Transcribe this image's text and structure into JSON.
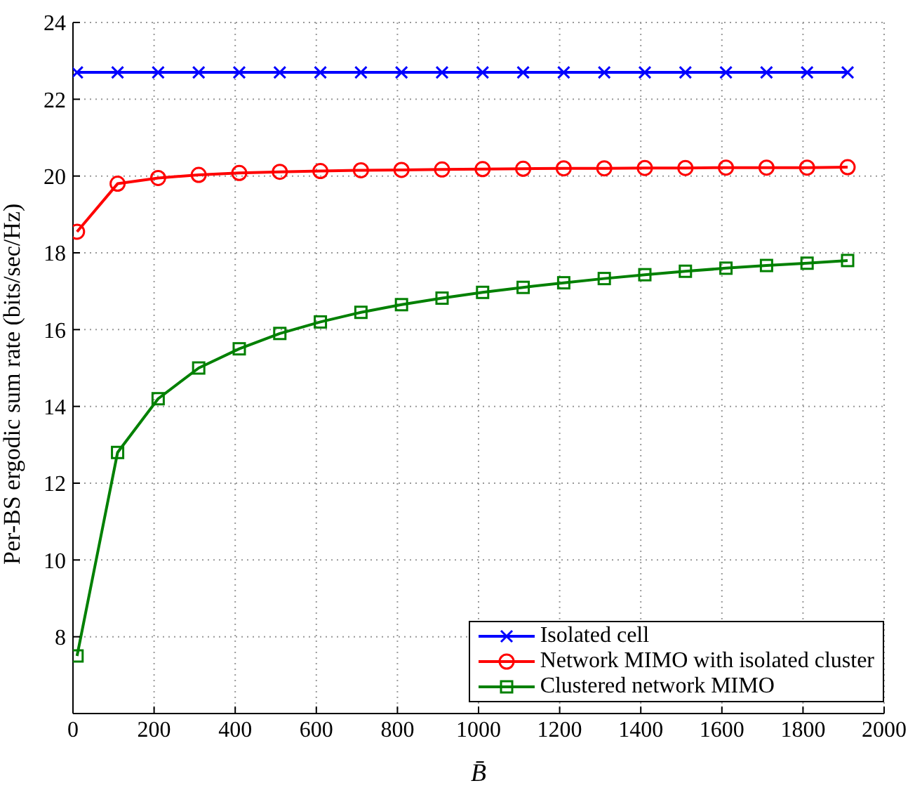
{
  "chart_data": {
    "type": "line",
    "xlabel": "B̄",
    "ylabel": "Per-BS ergodic sum rate (bits/sec/Hz)",
    "x": [
      10,
      110,
      210,
      310,
      410,
      510,
      610,
      710,
      810,
      910,
      1010,
      1110,
      1210,
      1310,
      1410,
      1510,
      1610,
      1710,
      1810,
      1910
    ],
    "series": [
      {
        "name": "Isolated cell",
        "color": "#0000ff",
        "marker": "cross",
        "values": [
          22.7,
          22.7,
          22.7,
          22.7,
          22.7,
          22.7,
          22.7,
          22.7,
          22.7,
          22.7,
          22.7,
          22.7,
          22.7,
          22.7,
          22.7,
          22.7,
          22.7,
          22.7,
          22.7,
          22.7
        ]
      },
      {
        "name": "Network MIMO with isolated cluster",
        "color": "#ff0000",
        "marker": "circle",
        "values": [
          18.55,
          19.8,
          19.95,
          20.03,
          20.08,
          20.11,
          20.13,
          20.15,
          20.16,
          20.17,
          20.18,
          20.19,
          20.2,
          20.2,
          20.21,
          20.21,
          20.22,
          20.22,
          20.22,
          20.23
        ]
      },
      {
        "name": "Clustered network MIMO",
        "color": "#008000",
        "marker": "square",
        "values": [
          7.5,
          12.8,
          14.2,
          15.0,
          15.5,
          15.9,
          16.2,
          16.45,
          16.65,
          16.82,
          16.97,
          17.1,
          17.22,
          17.33,
          17.43,
          17.52,
          17.6,
          17.67,
          17.73,
          17.8
        ]
      }
    ],
    "xlim": [
      0,
      2000
    ],
    "xticks": [
      0,
      200,
      400,
      600,
      800,
      1000,
      1200,
      1400,
      1600,
      1800,
      2000
    ],
    "ylim": [
      6,
      24
    ],
    "yticks": [
      8,
      10,
      12,
      14,
      16,
      18,
      20,
      22,
      24
    ],
    "grid": true,
    "legend": "bottom right",
    "line_style": "solid"
  }
}
